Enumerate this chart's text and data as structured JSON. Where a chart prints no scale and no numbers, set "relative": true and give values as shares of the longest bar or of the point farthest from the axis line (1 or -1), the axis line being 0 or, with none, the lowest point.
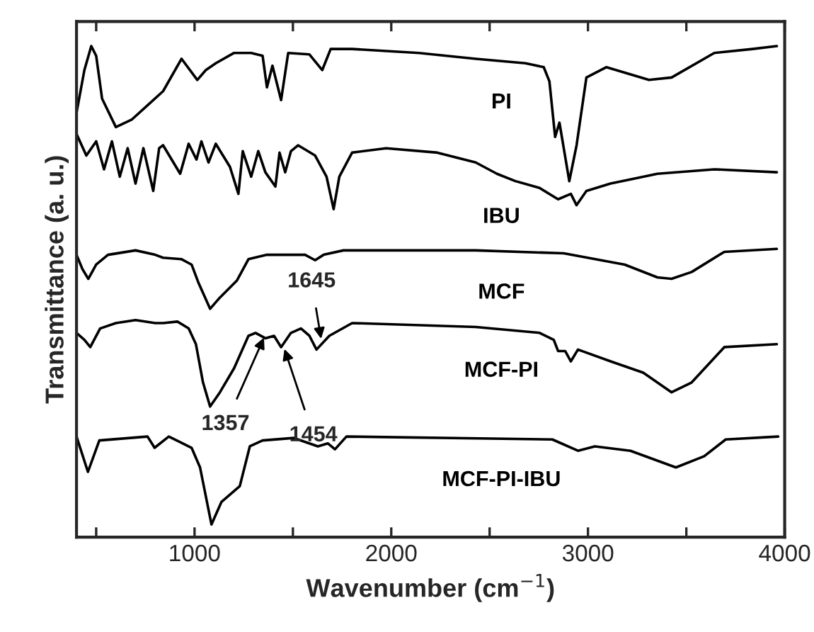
{
  "chart_data": {
    "type": "line",
    "relative": true,
    "xlabel": "Wavenumber (cm$^{−1}$)",
    "ylabel": "Transmittance (a. u.)",
    "xlim": [
      400,
      4000
    ],
    "xticks": [
      {
        "value": 500,
        "label": null
      },
      1000,
      {
        "value": 1500,
        "label": null
      },
      2000,
      {
        "value": 2500,
        "label": null
      },
      3000,
      {
        "value": 3500,
        "label": null
      },
      4000
    ],
    "tick_labels": "x",
    "grid": false,
    "legend": false,
    "marker": "none",
    "line_style": "solid",
    "series": [
      {
        "name": "PI",
        "color": "#000000",
        "x": [
          400,
          440,
          475,
          500,
          530,
          600,
          680,
          760,
          840,
          934,
          1014,
          1057,
          1108,
          1201,
          1288,
          1346,
          1368,
          1396,
          1440,
          1476,
          1584,
          1649,
          1692,
          1801,
          2140,
          2429,
          2682,
          2775,
          2804,
          2833,
          2855,
          2905,
          2942,
          2992,
          3093,
          3310,
          3425,
          3642,
          3837,
          3960
        ],
        "values": [
          0.864,
          0.951,
          1.0,
          0.98,
          0.893,
          0.835,
          0.85,
          0.879,
          0.908,
          0.974,
          0.931,
          0.951,
          0.965,
          0.986,
          0.986,
          0.98,
          0.916,
          0.96,
          0.89,
          0.986,
          0.983,
          0.951,
          0.994,
          0.994,
          0.986,
          0.974,
          0.965,
          0.957,
          0.928,
          0.815,
          0.844,
          0.725,
          0.798,
          0.936,
          0.957,
          0.931,
          0.936,
          0.986,
          0.994,
          1.0
        ]
      },
      {
        "name": "IBU",
        "color": "#000000",
        "x": [
          400,
          450,
          500,
          540,
          580,
          620,
          660,
          700,
          740,
          790,
          820,
          840,
          927,
          970,
          1010,
          1035,
          1071,
          1108,
          1180,
          1223,
          1245,
          1288,
          1324,
          1360,
          1411,
          1432,
          1461,
          1490,
          1526,
          1613,
          1671,
          1707,
          1736,
          1801,
          1974,
          2234,
          2429,
          2537,
          2631,
          2754,
          2848,
          2913,
          2942,
          2992,
          3115,
          3353,
          3642,
          3960
        ],
        "values": [
          0.821,
          0.777,
          0.806,
          0.749,
          0.806,
          0.734,
          0.792,
          0.72,
          0.792,
          0.705,
          0.792,
          0.798,
          0.74,
          0.801,
          0.769,
          0.806,
          0.763,
          0.801,
          0.754,
          0.699,
          0.786,
          0.734,
          0.786,
          0.743,
          0.714,
          0.783,
          0.743,
          0.786,
          0.798,
          0.777,
          0.734,
          0.668,
          0.734,
          0.783,
          0.792,
          0.783,
          0.763,
          0.74,
          0.725,
          0.711,
          0.688,
          0.699,
          0.676,
          0.705,
          0.72,
          0.74,
          0.749,
          0.743
        ]
      },
      {
        "name": "MCF",
        "color": "#000000",
        "x": [
          400,
          430,
          460,
          500,
          560,
          700,
          800,
          840,
          934,
          985,
          1021,
          1079,
          1129,
          1216,
          1274,
          1368,
          1562,
          1613,
          1656,
          1757,
          2429,
          2877,
          3187,
          3353,
          3425,
          3527,
          3693,
          3960
        ],
        "values": [
          0.575,
          0.546,
          0.526,
          0.555,
          0.575,
          0.584,
          0.575,
          0.569,
          0.566,
          0.555,
          0.517,
          0.465,
          0.488,
          0.523,
          0.566,
          0.575,
          0.575,
          0.564,
          0.575,
          0.584,
          0.584,
          0.578,
          0.555,
          0.529,
          0.526,
          0.54,
          0.581,
          0.587
        ]
      },
      {
        "name": "MCF-PI",
        "color": "#000000",
        "x": [
          400,
          440,
          470,
          520,
          600,
          700,
          800,
          840,
          913,
          970,
          1007,
          1043,
          1079,
          1129,
          1201,
          1274,
          1310,
          1360,
          1404,
          1440,
          1490,
          1541,
          1584,
          1620,
          1685,
          1801,
          2429,
          2754,
          2826,
          2848,
          2884,
          2913,
          2949,
          3115,
          3281,
          3425,
          3527,
          3693,
          3960
        ],
        "values": [
          0.416,
          0.402,
          0.387,
          0.425,
          0.436,
          0.442,
          0.436,
          0.436,
          0.439,
          0.425,
          0.393,
          0.315,
          0.266,
          0.295,
          0.344,
          0.41,
          0.416,
          0.405,
          0.41,
          0.387,
          0.416,
          0.425,
          0.41,
          0.382,
          0.41,
          0.436,
          0.428,
          0.416,
          0.402,
          0.379,
          0.379,
          0.358,
          0.382,
          0.358,
          0.335,
          0.295,
          0.315,
          0.387,
          0.393
        ]
      },
      {
        "name": "MCF-PI-IBU",
        "color": "#000000",
        "x": [
          400,
          458,
          516,
          761,
          797,
          869,
          985,
          1028,
          1086,
          1137,
          1230,
          1281,
          1346,
          1505,
          1627,
          1678,
          1714,
          1772,
          2819,
          2949,
          3035,
          3216,
          3447,
          3591,
          3700,
          3967
        ],
        "values": [
          0.205,
          0.133,
          0.197,
          0.205,
          0.182,
          0.205,
          0.182,
          0.142,
          0.026,
          0.072,
          0.104,
          0.185,
          0.197,
          0.202,
          0.185,
          0.191,
          0.179,
          0.205,
          0.199,
          0.176,
          0.185,
          0.176,
          0.142,
          0.165,
          0.199,
          0.205
        ]
      }
    ],
    "annotations": [
      {
        "text": "1357",
        "x": 1357,
        "y": 0.41
      },
      {
        "text": "1454",
        "x": 1454,
        "y": 0.387
      },
      {
        "text": "1645",
        "x": 1645,
        "y": 0.4
      }
    ]
  }
}
